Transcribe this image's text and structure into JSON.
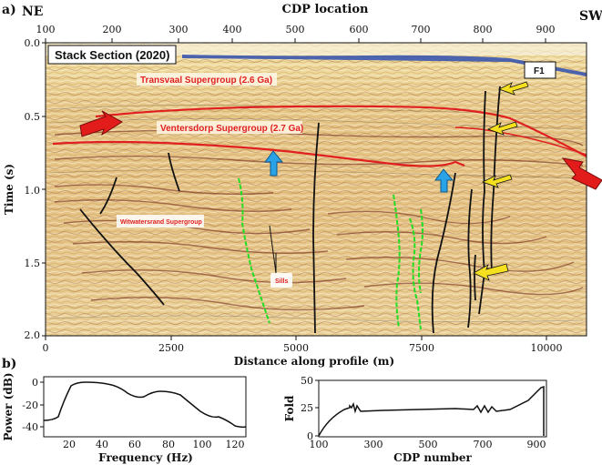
{
  "panel_a": {
    "label": "a)",
    "left_corner": "NE",
    "right_corner": "SW",
    "top_axis_title": "CDP location",
    "top_ticks": [
      "100",
      "200",
      "300",
      "400",
      "500",
      "600",
      "700",
      "800",
      "900"
    ],
    "y_axis_title": "Time (s)",
    "y_ticks": [
      "0.0",
      "0.5",
      "1.0",
      "1.5",
      "2.0"
    ],
    "x_axis_title": "Distance along profile (m)",
    "x_ticks": [
      "0",
      "2500",
      "5000",
      "7500",
      "10000"
    ],
    "stack_title": "Stack Section (2020)",
    "labels": {
      "transvaal": "Transvaal Supergroup (2.6 Ga)",
      "ventersdorp": "Ventersdorp Supergroup (2.7 Ga)",
      "witwatersrand": "Witwatersrand Supergroup",
      "sills": "Sills",
      "fault": "F1"
    }
  },
  "panel_b": {
    "label": "b)",
    "power": {
      "ylabel": "Power (dB)",
      "xlabel": "Frequency (Hz)",
      "x_ticks": [
        "20",
        "40",
        "60",
        "80",
        "100",
        "120"
      ],
      "y_ticks": [
        "0",
        "-20",
        "-40"
      ]
    },
    "fold": {
      "ylabel": "Fold",
      "xlabel": "CDP number",
      "x_ticks": [
        "100",
        "300",
        "500",
        "700",
        "900"
      ],
      "y_ticks": [
        "50",
        "25",
        "0"
      ]
    }
  },
  "colors": {
    "horizon": "#e02020",
    "annotation_text": "#e02020",
    "sill": "#22dd22",
    "fault": "#111111",
    "arrow_red": "#e21b1b",
    "arrow_blue": "#2aa3e6",
    "arrow_yellow": "#f5e020"
  }
}
